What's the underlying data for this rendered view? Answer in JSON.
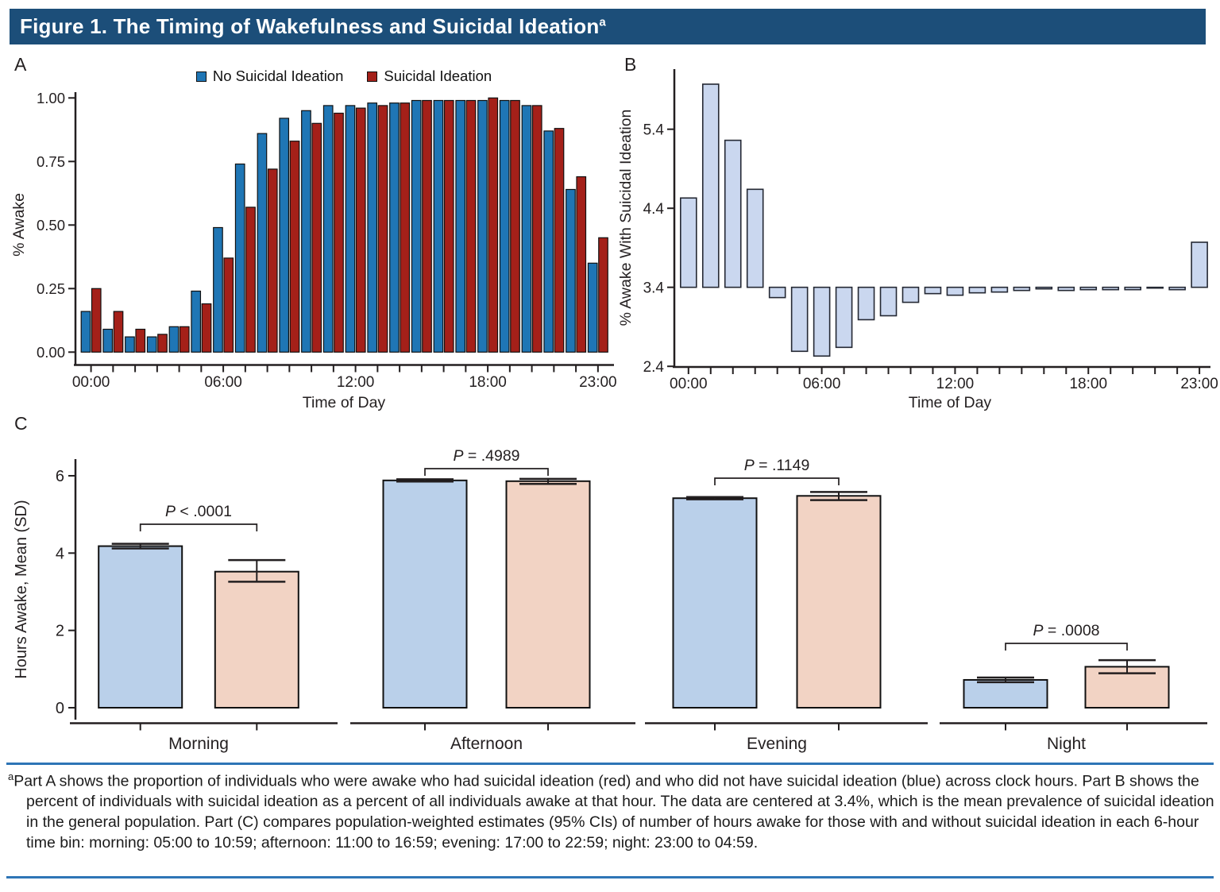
{
  "title": {
    "text": "Figure 1. The Timing of Wakefulness and Suicidal Ideation",
    "superscript": "a"
  },
  "panel_labels": {
    "a": "A",
    "b": "B",
    "c": "C"
  },
  "legend": {
    "items": [
      {
        "label": "No Suicidal Ideation",
        "color": "#1f76b5"
      },
      {
        "label": "Suicidal Ideation",
        "color": "#a42019"
      }
    ]
  },
  "colors": {
    "header_bg": "#1c4e79",
    "header_text": "#ffffff",
    "rule_blue": "#2e75b6",
    "axis_text": "#231f20",
    "panel_a_blue": "#1f76b5",
    "panel_a_red": "#a42019",
    "panel_b_bar_fill": "#cad7ef",
    "panel_b_bar_stroke": "#242833",
    "panel_c_blue_fill": "#bad0ea",
    "panel_c_pink_fill": "#f2d3c4",
    "bar_outline": "#111111"
  },
  "footnote": {
    "marker": "a",
    "text": "Part A shows the proportion of individuals who were awake who had suicidal ideation (red) and who did not have suicidal ideation (blue) across clock hours. Part B shows the percent of individuals with suicidal ideation as a percent of all individuals awake at that hour. The data are centered at 3.4%, which is the mean prevalence of suicidal ideation in the general population. Part (C) compares population-weighted estimates (95% CIs) of number of hours awake for those with and without suicidal ideation in each 6-hour time bin: morning: 05:00 to 10:59; afternoon: 11:00 to 16:59; evening: 17:00 to 22:59; night: 23:00 to 04:59."
  },
  "chart_data": [
    {
      "panel": "A",
      "type": "bar",
      "xlabel": "Time of Day",
      "ylabel": "% Awake",
      "ylim": [
        0,
        1.0
      ],
      "yticks": [
        0,
        0.25,
        0.5,
        0.75,
        1.0
      ],
      "ytick_labels": [
        "0.00",
        "0.25",
        "0.50",
        "0.75",
        "1.00"
      ],
      "x_hours": 24,
      "x_tick_hours": [
        0,
        6,
        12,
        18,
        23
      ],
      "x_tick_labels": [
        "00:00",
        "06:00",
        "12:00",
        "18:00",
        "23:00"
      ],
      "legend_position": "top",
      "series": [
        {
          "name": "No Suicidal Ideation",
          "color": "#1f76b5",
          "values": [
            0.16,
            0.09,
            0.06,
            0.06,
            0.1,
            0.24,
            0.49,
            0.74,
            0.86,
            0.92,
            0.95,
            0.97,
            0.97,
            0.98,
            0.98,
            0.99,
            0.99,
            0.99,
            0.99,
            0.99,
            0.97,
            0.87,
            0.64,
            0.35
          ]
        },
        {
          "name": "Suicidal Ideation",
          "color": "#a42019",
          "values": [
            0.25,
            0.16,
            0.09,
            0.07,
            0.1,
            0.19,
            0.37,
            0.57,
            0.72,
            0.83,
            0.9,
            0.94,
            0.96,
            0.97,
            0.98,
            0.99,
            0.99,
            0.99,
            1.0,
            0.99,
            0.97,
            0.88,
            0.69,
            0.45
          ]
        }
      ]
    },
    {
      "panel": "B",
      "type": "bar",
      "xlabel": "Time of Day",
      "ylabel": "% Awake With Suicidal Ideation",
      "baseline": 3.4,
      "ylim": [
        2.4,
        6.1
      ],
      "yticks": [
        2.4,
        3.4,
        4.4,
        5.4
      ],
      "ytick_labels": [
        "2.4",
        "3.4",
        "4.4",
        "5.4"
      ],
      "x_tick_hours": [
        0,
        6,
        12,
        18,
        23
      ],
      "x_tick_labels": [
        "00:00",
        "06:00",
        "12:00",
        "18:00",
        "23:00"
      ],
      "values": [
        4.53,
        5.97,
        5.26,
        4.64,
        3.27,
        2.59,
        2.53,
        2.64,
        2.99,
        3.04,
        3.21,
        3.32,
        3.3,
        3.33,
        3.34,
        3.36,
        3.38,
        3.36,
        3.37,
        3.37,
        3.37,
        3.39,
        3.37,
        3.97
      ]
    },
    {
      "panel": "C",
      "type": "grouped-bar-with-error",
      "ylabel": "Hours Awake, Mean (SD)",
      "ylim": [
        0,
        7
      ],
      "yticks": [
        0,
        2,
        4,
        6
      ],
      "ytick_labels": [
        "0",
        "2",
        "4",
        "6"
      ],
      "series_names": [
        "No Suicidal Ideation",
        "Suicidal Ideation"
      ],
      "groups": [
        {
          "label": "Morning",
          "p_text": "P < .0001",
          "no_si": {
            "mean": 4.18,
            "err_up": 0.06,
            "err_dn": 0.06
          },
          "si": {
            "mean": 3.52,
            "err_up": 0.3,
            "err_dn": 0.26
          }
        },
        {
          "label": "Afternoon",
          "p_text": "P = .4989",
          "no_si": {
            "mean": 5.88,
            "err_up": 0.03,
            "err_dn": 0.03
          },
          "si": {
            "mean": 5.86,
            "err_up": 0.06,
            "err_dn": 0.07
          }
        },
        {
          "label": "Evening",
          "p_text": "P = .1149",
          "no_si": {
            "mean": 5.42,
            "err_up": 0.03,
            "err_dn": 0.03
          },
          "si": {
            "mean": 5.48,
            "err_up": 0.1,
            "err_dn": 0.11
          }
        },
        {
          "label": "Night",
          "p_text": "P = .0008",
          "no_si": {
            "mean": 0.72,
            "err_up": 0.06,
            "err_dn": 0.06
          },
          "si": {
            "mean": 1.06,
            "err_up": 0.17,
            "err_dn": 0.17
          }
        }
      ]
    }
  ]
}
